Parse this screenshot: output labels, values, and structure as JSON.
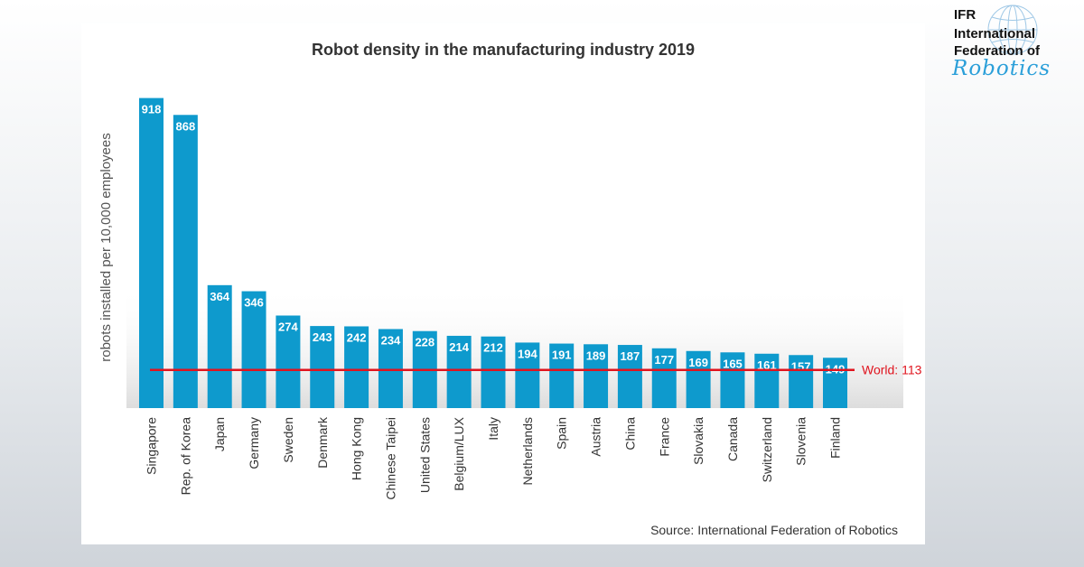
{
  "logo": {
    "line1": "IFR",
    "line2": "International",
    "line3": "Federation of",
    "line4": "Robotics"
  },
  "chart_data": {
    "type": "bar",
    "title": "Robot density in the manufacturing industry 2019",
    "ylabel": "robots installed per 10,000 employees",
    "xlabel": "",
    "ylim": [
      0,
      1000
    ],
    "categories": [
      "Singapore",
      "Rep. of Korea",
      "Japan",
      "Germany",
      "Sweden",
      "Denmark",
      "Hong Kong",
      "Chinese Taipei",
      "United States",
      "Belgium/LUX",
      "Italy",
      "Netherlands",
      "Spain",
      "Austria",
      "China",
      "France",
      "Slovakia",
      "Canada",
      "Switzerland",
      "Slovenia",
      "Finland"
    ],
    "values": [
      918,
      868,
      364,
      346,
      274,
      243,
      242,
      234,
      228,
      214,
      212,
      194,
      191,
      189,
      187,
      177,
      169,
      165,
      161,
      157,
      149
    ],
    "reference_line": {
      "label": "World: 113",
      "value": 113
    },
    "source": "Source: International  Federation of Robotics",
    "grid": false,
    "colors": {
      "bar": "#0e9acd",
      "reference": "#e0141e",
      "text": "#333333"
    }
  }
}
